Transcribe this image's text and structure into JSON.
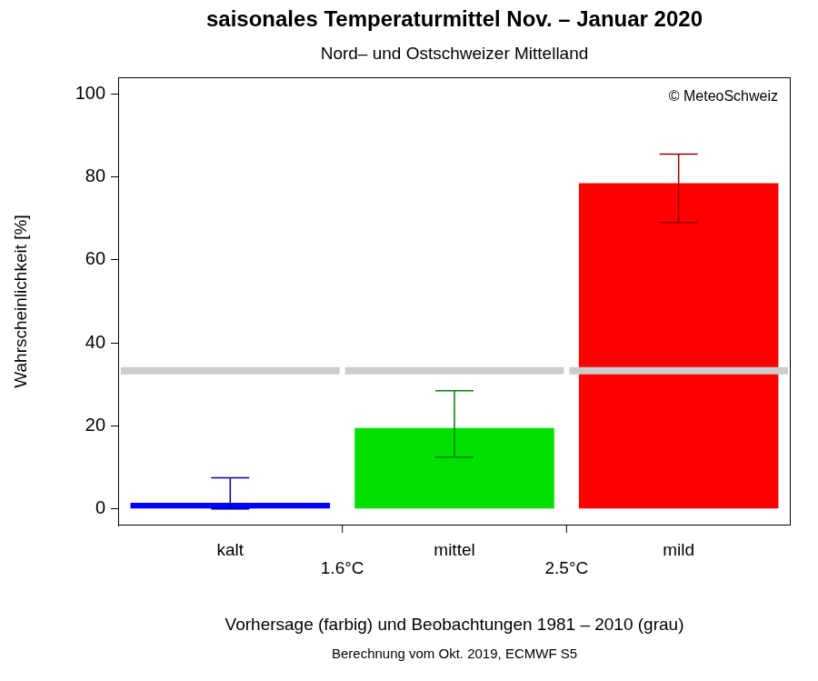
{
  "chart_data": {
    "type": "bar",
    "title": "saisonales Temperaturmittel Nov. – Januar 2020",
    "subtitle": "Nord– und Ostschweizer Mittelland",
    "annotations": [
      "© MeteoSchweiz"
    ],
    "ylabel": "Wahrscheinlichkeit [%]",
    "xlabel": "Vorhersage (farbig) und Beobachtungen 1981 – 2010 (grau)",
    "note": "Berechnung vom Okt. 2019, ECMWF S5",
    "categories": [
      "kalt",
      "mittel",
      "mild"
    ],
    "category_bounds": [
      "1.6°C",
      "2.5°C"
    ],
    "series": [
      {
        "type": "bar",
        "colors": [
          "#0000ff",
          "#00e000",
          "#ff0000"
        ],
        "values": [
          1.5,
          19.5,
          78.5
        ],
        "error_low": [
          0,
          12.5,
          69
        ],
        "error_high": [
          7.5,
          28.5,
          85.5
        ]
      },
      {
        "type": "line",
        "color": "#cccccc",
        "values": [
          33.3,
          33.3,
          33.3
        ]
      }
    ],
    "ylim": [
      -4,
      104
    ],
    "yticks": [
      0,
      20,
      40,
      60,
      80,
      100
    ],
    "grid": false,
    "data_labels": false
  }
}
